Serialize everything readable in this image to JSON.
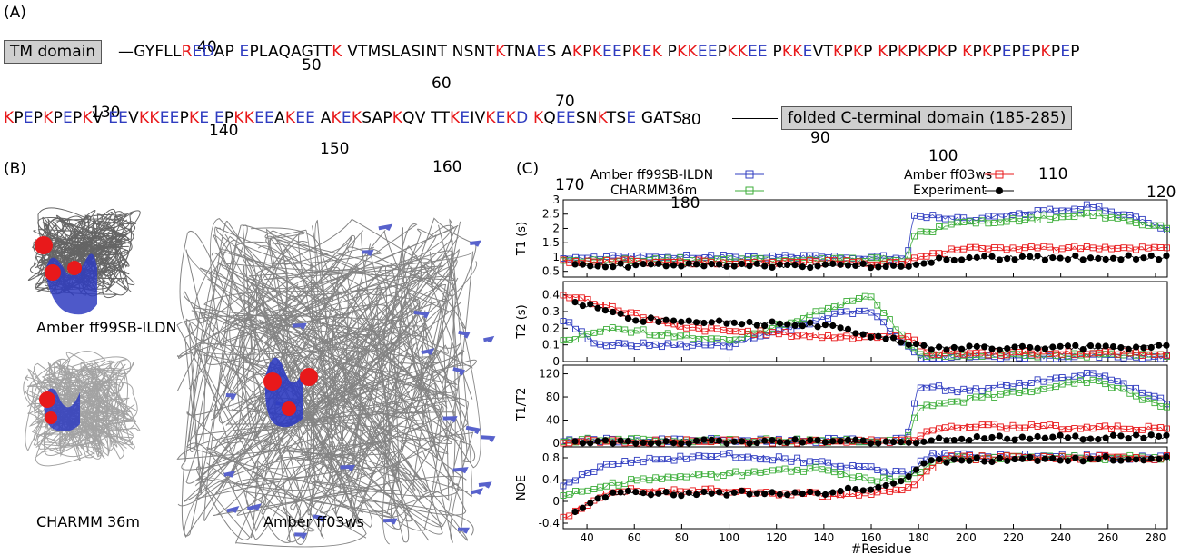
{
  "panelA": {
    "label": "(A)",
    "tm_box": "TM domain",
    "folded_box": "folded C-terminal domain (185-285)",
    "numbers_row1": [
      "40",
      "50",
      "60",
      "70",
      "80",
      "90",
      "100",
      "110",
      "120"
    ],
    "numbers_row2": [
      "130",
      "140",
      "150",
      "160",
      "170",
      "180"
    ],
    "row1_segments": [
      [
        "GYFLL",
        "neu"
      ],
      [
        "RED",
        "mix1"
      ],
      [
        "AP ",
        "neu"
      ],
      [
        "E",
        "neg"
      ],
      [
        "PLAQAGTT",
        "neu"
      ],
      [
        "K",
        "pos"
      ],
      [
        " VTMSLASINT NSNT",
        "neu"
      ],
      [
        "K",
        "pos"
      ],
      [
        "TNA",
        "neu"
      ],
      [
        "E",
        "neg"
      ],
      [
        "S A",
        "neu"
      ],
      [
        "K",
        "pos"
      ],
      [
        "P",
        "neu"
      ],
      [
        "KEE",
        "mix2"
      ],
      [
        "P",
        "neu"
      ],
      [
        "KEK",
        "mix3"
      ],
      [
        " P",
        "neu"
      ],
      [
        "KKEE",
        "mix4"
      ],
      [
        "P",
        "neu"
      ],
      [
        "KKEE",
        "mix4"
      ],
      [
        " P",
        "neu"
      ],
      [
        "KKE",
        "mix5"
      ],
      [
        "VT",
        "neu"
      ],
      [
        "K",
        "pos"
      ],
      [
        "P",
        "neu"
      ],
      [
        "K",
        "pos"
      ],
      [
        "P ",
        "neu"
      ],
      [
        "K",
        "pos"
      ],
      [
        "P",
        "neu"
      ],
      [
        "K",
        "pos"
      ],
      [
        "P",
        "neu"
      ],
      [
        "K",
        "pos"
      ],
      [
        "P",
        "neu"
      ],
      [
        "K",
        "pos"
      ],
      [
        "P ",
        "neu"
      ],
      [
        "K",
        "pos"
      ],
      [
        "P",
        "neu"
      ],
      [
        "K",
        "pos"
      ],
      [
        "P",
        "neu"
      ],
      [
        "E",
        "neg"
      ],
      [
        "P",
        "neu"
      ],
      [
        "E",
        "neg"
      ],
      [
        "P",
        "neu"
      ],
      [
        "K",
        "pos"
      ],
      [
        "P",
        "neu"
      ],
      [
        "E",
        "neg"
      ],
      [
        "P",
        "neu"
      ]
    ],
    "row2_segments": [
      [
        "K",
        "pos"
      ],
      [
        "P",
        "neu"
      ],
      [
        "E",
        "neg"
      ],
      [
        "P",
        "neu"
      ],
      [
        "K",
        "pos"
      ],
      [
        "P",
        "neu"
      ],
      [
        "E",
        "neg"
      ],
      [
        "P",
        "neu"
      ],
      [
        "K",
        "pos"
      ],
      [
        "V ",
        "neu"
      ],
      [
        "EE",
        "neg"
      ],
      [
        "V",
        "neu"
      ],
      [
        "KKEE",
        "mix4"
      ],
      [
        "P",
        "neu"
      ],
      [
        "KE",
        "mix6"
      ],
      [
        " ",
        "neu"
      ],
      [
        "E",
        "neg"
      ],
      [
        "P",
        "neu"
      ],
      [
        "KKEE",
        "mix4"
      ],
      [
        "A",
        "neu"
      ],
      [
        "K",
        "pos"
      ],
      [
        "EE",
        "neg"
      ],
      [
        " A",
        "neu"
      ],
      [
        "K",
        "pos"
      ],
      [
        "E",
        "neg"
      ],
      [
        "K",
        "pos"
      ],
      [
        "SAP",
        "neu"
      ],
      [
        "K",
        "pos"
      ],
      [
        "QV TT",
        "neu"
      ],
      [
        "KD",
        "mix6"
      ],
      [
        "IV",
        "neu"
      ],
      [
        "KEKD",
        "mix7"
      ],
      [
        " ",
        "neu"
      ],
      [
        "K",
        "pos"
      ],
      [
        "Q",
        "neu"
      ],
      [
        "EE",
        "neg"
      ],
      [
        "SN",
        "neu"
      ],
      [
        "K",
        "pos"
      ],
      [
        "TS",
        "neu"
      ],
      [
        "E",
        "neg"
      ],
      [
        " GATS",
        "neu"
      ]
    ]
  },
  "panelB": {
    "label": "(B)",
    "captions": [
      "Amber ff99SB-ILDN",
      "CHARMM 36m",
      "Amber ff03ws"
    ]
  },
  "panelC": {
    "label": "(C)",
    "legend": [
      "Amber ff99SB-ILDN",
      "CHARMM36m",
      "Amber ff03ws",
      "Experiment"
    ],
    "xlabel": "#Residue",
    "subplots": [
      {
        "ylabel": "T1 (s)",
        "ticks": [
          "3",
          "2.5",
          "2",
          "1.5",
          "1",
          "0.5"
        ]
      },
      {
        "ylabel": "T2 (s)",
        "ticks": [
          "0.4",
          "0.3",
          "0.2",
          "0.1",
          "0"
        ]
      },
      {
        "ylabel": "T1/T2",
        "ticks": [
          "120",
          "80",
          "40",
          "0"
        ]
      },
      {
        "ylabel": "NOE",
        "ticks": [
          "0.8",
          "0.4",
          "0",
          "-0.4"
        ]
      }
    ]
  },
  "colors": {
    "red": "#e8191b",
    "blue": "#2f3cc0",
    "green": "#3dae3a",
    "black": "#000000",
    "gray": "#cfcfcf"
  },
  "chart_data": {
    "type": "scatter",
    "xlabel": "#Residue",
    "xlim": [
      30,
      285
    ],
    "xticks": [
      40,
      60,
      80,
      100,
      120,
      140,
      160,
      180,
      200,
      220,
      240,
      260,
      280
    ],
    "series": [
      {
        "name": "Amber ff99SB-ILDN",
        "color": "#2f3cc0",
        "marker": "open-square"
      },
      {
        "name": "CHARMM36m",
        "color": "#3dae3a",
        "marker": "open-square"
      },
      {
        "name": "Amber ff03ws",
        "color": "#e8191b",
        "marker": "open-square"
      },
      {
        "name": "Experiment",
        "color": "#000000",
        "marker": "filled-circle"
      }
    ],
    "panels": [
      {
        "ylabel": "T1 (s)",
        "ylim": [
          0.3,
          3
        ],
        "profiles": {
          "blue": [
            [
              30,
              1.0
            ],
            [
              175,
              1.0
            ],
            [
              178,
              2.5
            ],
            [
              200,
              2.3
            ],
            [
              255,
              2.8
            ],
            [
              285,
              2.0
            ]
          ],
          "green": [
            [
              30,
              0.9
            ],
            [
              175,
              0.9
            ],
            [
              178,
              1.8
            ],
            [
              200,
              2.2
            ],
            [
              255,
              2.5
            ],
            [
              285,
              2.0
            ]
          ],
          "red": [
            [
              30,
              0.85
            ],
            [
              175,
              0.8
            ],
            [
              180,
              1.0
            ],
            [
              200,
              1.3
            ],
            [
              285,
              1.3
            ]
          ],
          "black": [
            [
              35,
              0.7
            ],
            [
              175,
              0.7
            ],
            [
              190,
              0.95
            ],
            [
              285,
              1.0
            ]
          ]
        }
      },
      {
        "ylabel": "T2 (s)",
        "ylim": [
          0,
          0.48
        ],
        "profiles": {
          "blue": [
            [
              30,
              0.25
            ],
            [
              45,
              0.1
            ],
            [
              100,
              0.1
            ],
            [
              150,
              0.3
            ],
            [
              160,
              0.3
            ],
            [
              175,
              0.1
            ],
            [
              180,
              0.03
            ],
            [
              285,
              0.03
            ]
          ],
          "green": [
            [
              30,
              0.12
            ],
            [
              50,
              0.2
            ],
            [
              100,
              0.12
            ],
            [
              150,
              0.35
            ],
            [
              160,
              0.4
            ],
            [
              175,
              0.12
            ],
            [
              180,
              0.04
            ],
            [
              285,
              0.04
            ]
          ],
          "red": [
            [
              30,
              0.4
            ],
            [
              45,
              0.35
            ],
            [
              80,
              0.2
            ],
            [
              140,
              0.15
            ],
            [
              175,
              0.15
            ],
            [
              185,
              0.05
            ],
            [
              285,
              0.05
            ]
          ],
          "black": [
            [
              38,
              0.35
            ],
            [
              60,
              0.25
            ],
            [
              70,
              0.25
            ],
            [
              130,
              0.22
            ],
            [
              140,
              0.22
            ],
            [
              185,
              0.08
            ],
            [
              285,
              0.09
            ]
          ]
        }
      },
      {
        "ylabel": "T1/T2",
        "ylim": [
          0,
          135
        ],
        "profiles": {
          "blue": [
            [
              30,
              5
            ],
            [
              175,
              5
            ],
            [
              180,
              100
            ],
            [
              200,
              90
            ],
            [
              255,
              120
            ],
            [
              285,
              70
            ]
          ],
          "green": [
            [
              30,
              5
            ],
            [
              175,
              5
            ],
            [
              180,
              60
            ],
            [
              200,
              75
            ],
            [
              255,
              110
            ],
            [
              285,
              60
            ]
          ],
          "red": [
            [
              30,
              3
            ],
            [
              175,
              3
            ],
            [
              185,
              20
            ],
            [
              200,
              30
            ],
            [
              285,
              25
            ]
          ],
          "black": [
            [
              35,
              2
            ],
            [
              180,
              3
            ],
            [
              190,
              8
            ],
            [
              285,
              12
            ]
          ]
        }
      },
      {
        "ylabel": "NOE",
        "ylim": [
          -0.5,
          1.0
        ],
        "profiles": {
          "blue": [
            [
              30,
              0.3
            ],
            [
              50,
              0.7
            ],
            [
              100,
              0.85
            ],
            [
              130,
              0.75
            ],
            [
              160,
              0.6
            ],
            [
              175,
              0.5
            ],
            [
              185,
              0.85
            ],
            [
              285,
              0.8
            ]
          ],
          "green": [
            [
              30,
              0.1
            ],
            [
              60,
              0.4
            ],
            [
              100,
              0.5
            ],
            [
              140,
              0.6
            ],
            [
              160,
              0.4
            ],
            [
              175,
              0.4
            ],
            [
              190,
              0.8
            ],
            [
              285,
              0.8
            ]
          ],
          "red": [
            [
              30,
              -0.3
            ],
            [
              50,
              0.2
            ],
            [
              100,
              0.2
            ],
            [
              150,
              0.1
            ],
            [
              175,
              0.2
            ],
            [
              190,
              0.8
            ],
            [
              285,
              0.8
            ]
          ],
          "black": [
            [
              35,
              -0.2
            ],
            [
              50,
              0.15
            ],
            [
              70,
              0.15
            ],
            [
              140,
              0.15
            ],
            [
              170,
              0.3
            ],
            [
              185,
              0.75
            ],
            [
              285,
              0.8
            ]
          ]
        }
      }
    ]
  }
}
